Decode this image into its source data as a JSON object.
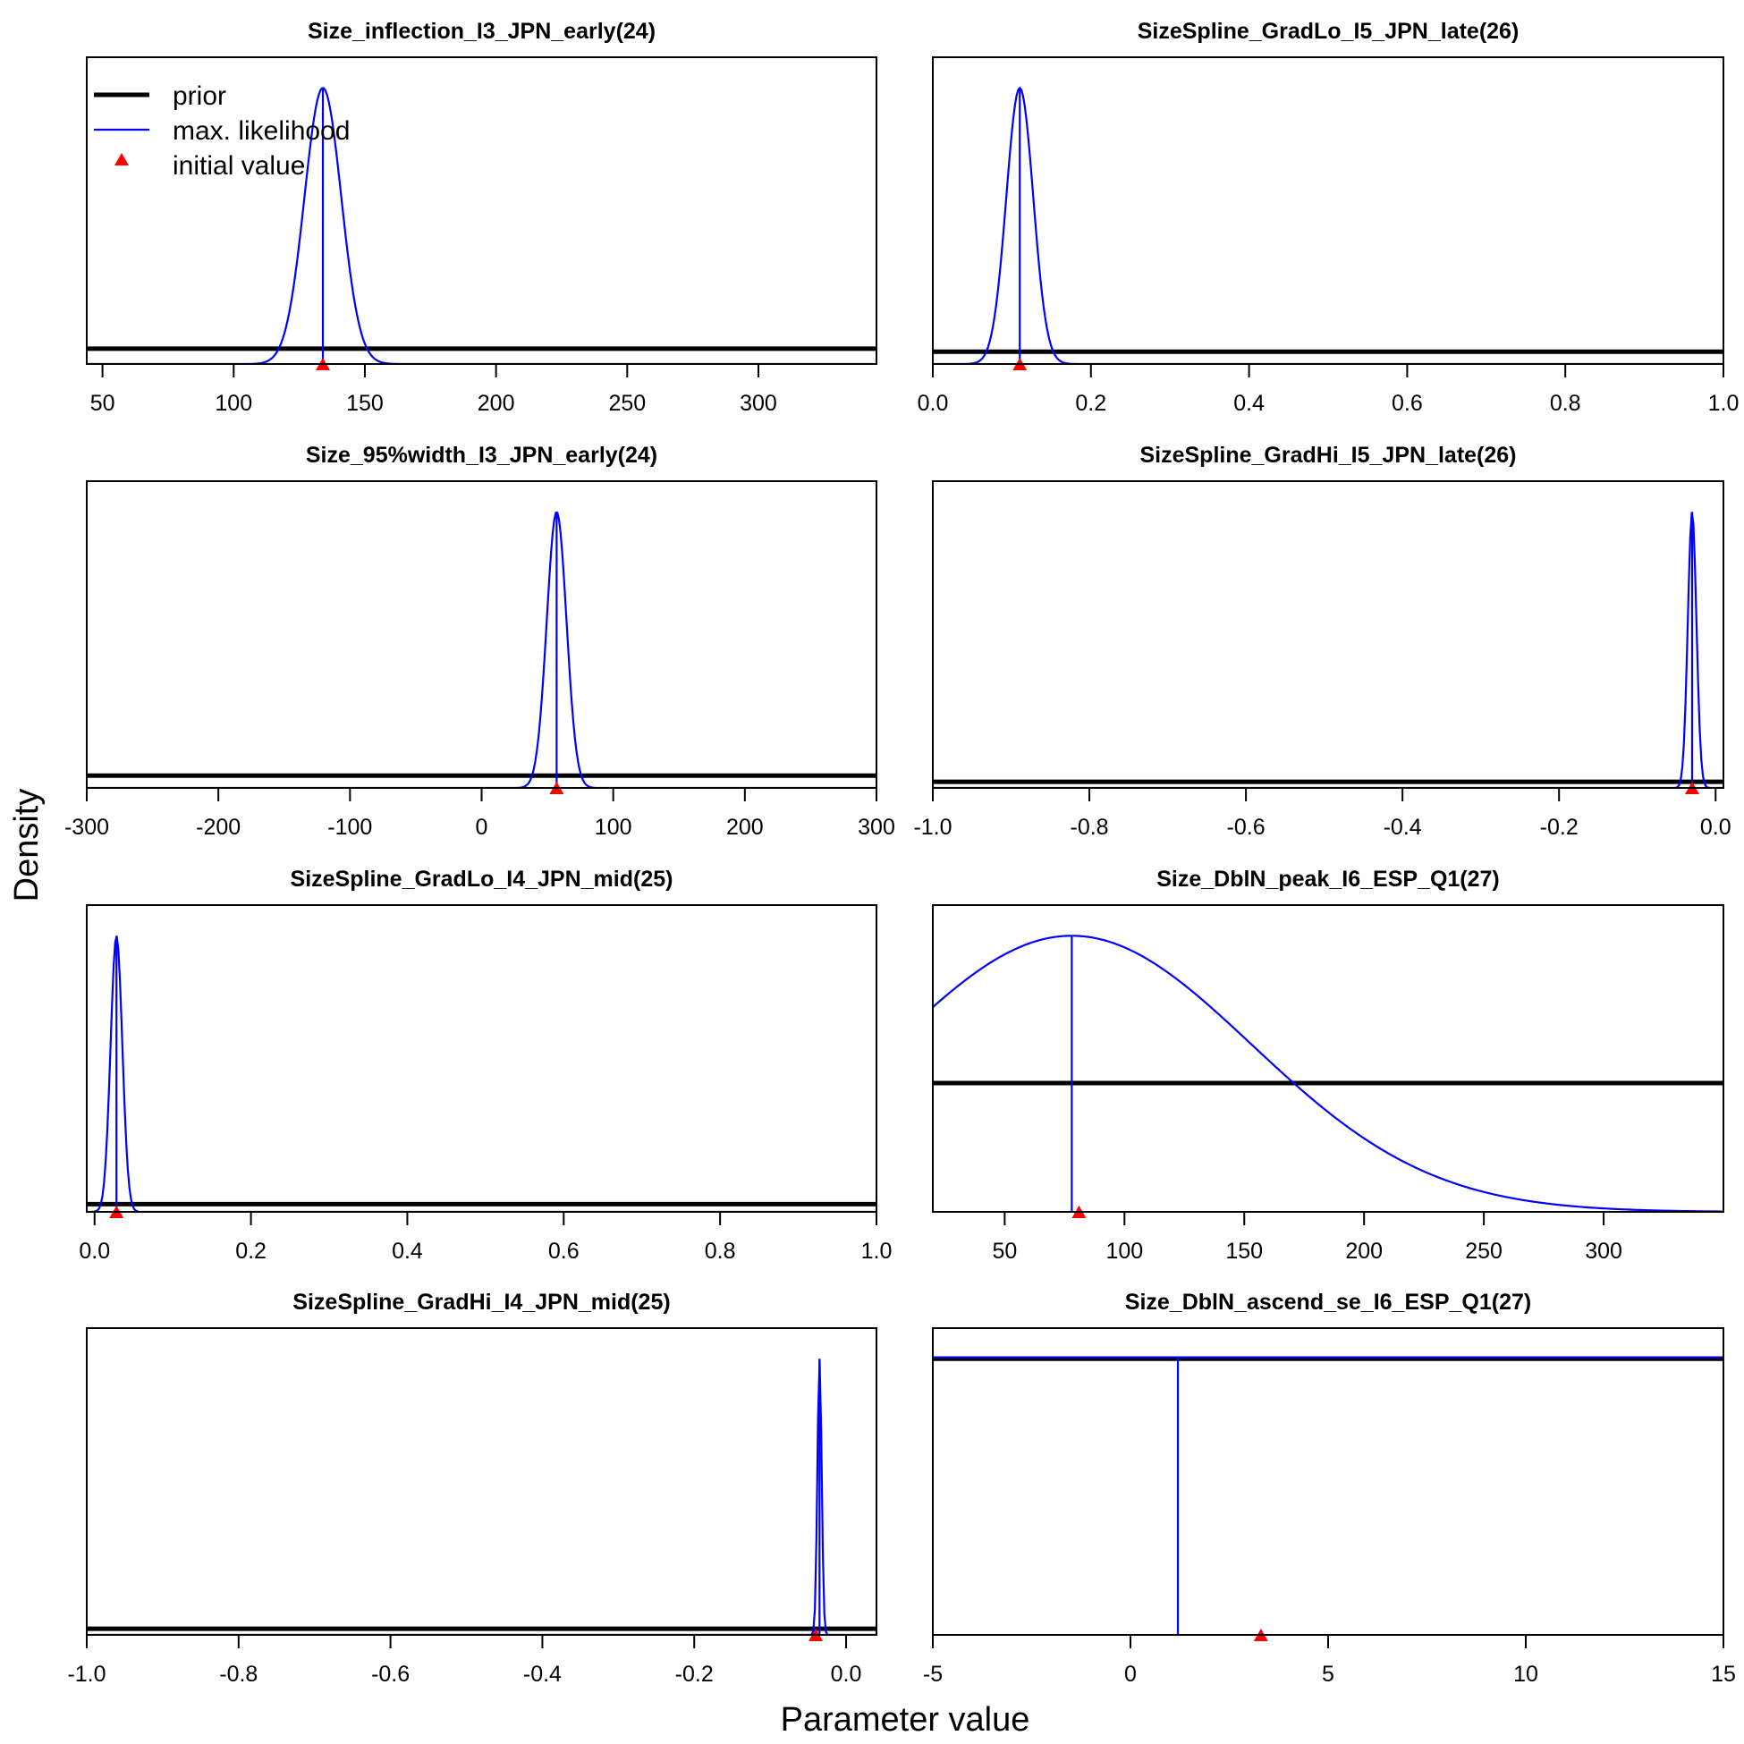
{
  "figure": {
    "ylabel": "Density",
    "xlabel": "Parameter value"
  },
  "legend": {
    "items": [
      {
        "label": "prior",
        "style": "thick-line",
        "color": "#000000"
      },
      {
        "label": "max. likelihood",
        "style": "thin-line",
        "color": "#0000FF"
      },
      {
        "label": "initial value",
        "style": "triangle",
        "color": "#FF0000"
      }
    ]
  },
  "colors": {
    "prior": "#000000",
    "likelihood": "#0000FF",
    "initial": "#FF0000"
  },
  "chart_data": [
    {
      "type": "line",
      "title": "Size_inflection_I3_JPN_early(24)",
      "xlim": [
        44,
        345
      ],
      "ylim": [
        0,
        1
      ],
      "xticks": [
        50,
        100,
        150,
        200,
        250,
        300
      ],
      "tick_labels": [
        "50",
        "100",
        "150",
        "200",
        "250",
        "300"
      ],
      "prior_level": 0.05,
      "mle": {
        "kind": "normal",
        "mean": 134,
        "sd": 7,
        "peak": 0.9
      },
      "estimate": 134,
      "initial_value": 134
    },
    {
      "type": "line",
      "title": "SizeSpline_GradLo_I5_JPN_late(26)",
      "xlim": [
        0,
        1
      ],
      "ylim": [
        0,
        1
      ],
      "xticks": [
        0,
        0.2,
        0.4,
        0.6,
        0.8,
        1
      ],
      "tick_labels": [
        "0.0",
        "0.2",
        "0.4",
        "0.6",
        "0.8",
        "1.0"
      ],
      "prior_level": 0.04,
      "mle": {
        "kind": "normal",
        "mean": 0.11,
        "sd": 0.017,
        "peak": 0.9
      },
      "estimate": 0.11,
      "initial_value": 0.11
    },
    {
      "type": "line",
      "title": "Size_95%width_I3_JPN_early(24)",
      "xlim": [
        -300,
        300
      ],
      "ylim": [
        0,
        1
      ],
      "xticks": [
        -300,
        -200,
        -100,
        0,
        100,
        200,
        300
      ],
      "tick_labels": [
        "-300",
        "-200",
        "-100",
        "0",
        "100",
        "200",
        "300"
      ],
      "prior_level": 0.04,
      "mle": {
        "kind": "normal",
        "mean": 57,
        "sd": 7.5,
        "peak": 0.9
      },
      "estimate": 57,
      "initial_value": 57
    },
    {
      "type": "line",
      "title": "SizeSpline_GradHi_I5_JPN_late(26)",
      "xlim": [
        -1,
        0.01
      ],
      "ylim": [
        0,
        1
      ],
      "xticks": [
        -1,
        -0.8,
        -0.6,
        -0.4,
        -0.2,
        0
      ],
      "tick_labels": [
        "-1.0",
        "-0.8",
        "-0.6",
        "-0.4",
        "-0.2",
        "0.0"
      ],
      "prior_level": 0.02,
      "mle": {
        "kind": "normal",
        "mean": -0.03,
        "sd": 0.0055,
        "peak": 0.9
      },
      "estimate": -0.03,
      "initial_value": -0.03
    },
    {
      "type": "line",
      "title": "SizeSpline_GradLo_I4_JPN_mid(25)",
      "xlim": [
        -0.01,
        1
      ],
      "ylim": [
        0,
        1
      ],
      "xticks": [
        0,
        0.2,
        0.4,
        0.6,
        0.8,
        1
      ],
      "tick_labels": [
        "0.0",
        "0.2",
        "0.4",
        "0.6",
        "0.8",
        "1.0"
      ],
      "prior_level": 0.025,
      "mle": {
        "kind": "normal",
        "mean": 0.028,
        "sd": 0.0075,
        "peak": 0.9
      },
      "estimate": 0.028,
      "initial_value": 0.028
    },
    {
      "type": "line",
      "title": "Size_DblN_peak_I6_ESP_Q1(27)",
      "xlim": [
        20,
        350
      ],
      "ylim": [
        0,
        1
      ],
      "xticks": [
        50,
        100,
        150,
        200,
        250,
        300
      ],
      "tick_labels": [
        "50",
        "100",
        "150",
        "200",
        "250",
        "300"
      ],
      "prior_level": 0.42,
      "mle": {
        "kind": "normal",
        "mean": 78,
        "sd": 75,
        "peak": 0.9
      },
      "estimate": 78,
      "initial_value": 81
    },
    {
      "type": "line",
      "title": "SizeSpline_GradHi_I4_JPN_mid(25)",
      "xlim": [
        -1,
        0.04
      ],
      "ylim": [
        0,
        1
      ],
      "xticks": [
        -1,
        -0.8,
        -0.6,
        -0.4,
        -0.2,
        0
      ],
      "tick_labels": [
        "-1.0",
        "-0.8",
        "-0.6",
        "-0.4",
        "-0.2",
        "0.0"
      ],
      "prior_level": 0.02,
      "mle": {
        "kind": "normal",
        "mean": -0.035,
        "sd": 0.0028,
        "peak": 0.9
      },
      "estimate": -0.035,
      "initial_value": -0.04
    },
    {
      "type": "line",
      "title": "Size_DblN_ascend_se_I6_ESP_Q1(27)",
      "xlim": [
        -5,
        15
      ],
      "ylim": [
        0,
        1
      ],
      "xticks": [
        -5,
        0,
        5,
        10,
        15
      ],
      "tick_labels": [
        "-5",
        "0",
        "5",
        "10",
        "15"
      ],
      "prior_level": 0.9,
      "mle": {
        "kind": "flat",
        "level": 0.905
      },
      "estimate": 1.2,
      "initial_value": 3.3
    }
  ]
}
